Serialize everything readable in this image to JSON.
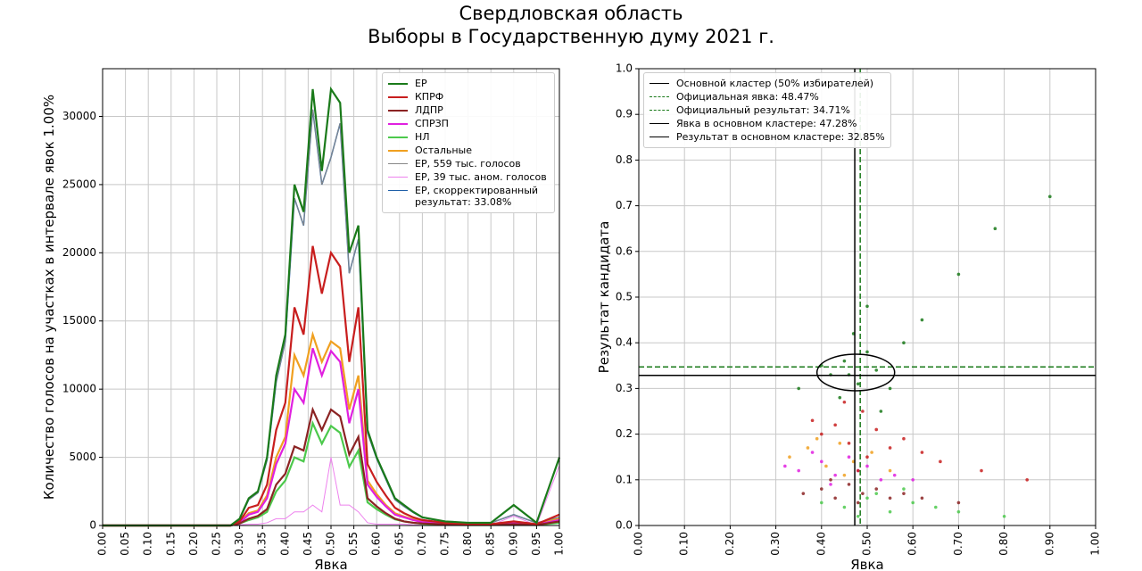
{
  "suptitle": [
    "Свердловская область",
    "Выборы в Государственную думу 2021 г."
  ],
  "chart_data": [
    {
      "type": "line",
      "xlabel": "Явка",
      "ylabel": "Количество голосов на участках в интервале явок 1.00%",
      "x": [
        0,
        0.28,
        0.3,
        0.32,
        0.34,
        0.36,
        0.38,
        0.4,
        0.42,
        0.44,
        0.46,
        0.48,
        0.5,
        0.52,
        0.54,
        0.56,
        0.58,
        0.6,
        0.62,
        0.64,
        0.66,
        0.68,
        0.7,
        0.75,
        0.8,
        0.85,
        0.9,
        0.95,
        1.0
      ],
      "xlim": [
        0,
        1
      ],
      "ylim": [
        0,
        33500
      ],
      "xticks": [
        {
          "value": 0,
          "label": "0.00"
        },
        {
          "value": 0.05,
          "label": "0.05"
        },
        {
          "value": 0.1,
          "label": "0.10"
        },
        {
          "value": 0.15,
          "label": "0.15"
        },
        {
          "value": 0.2,
          "label": "0.20"
        },
        {
          "value": 0.25,
          "label": "0.25"
        },
        {
          "value": 0.3,
          "label": "0.30"
        },
        {
          "value": 0.35,
          "label": "0.35"
        },
        {
          "value": 0.4,
          "label": "0.40"
        },
        {
          "value": 0.45,
          "label": "0.45"
        },
        {
          "value": 0.5,
          "label": "0.50"
        },
        {
          "value": 0.55,
          "label": "0.55"
        },
        {
          "value": 0.6,
          "label": "0.60"
        },
        {
          "value": 0.65,
          "label": "0.65"
        },
        {
          "value": 0.7,
          "label": "0.70"
        },
        {
          "value": 0.75,
          "label": "0.75"
        },
        {
          "value": 0.8,
          "label": "0.80"
        },
        {
          "value": 0.85,
          "label": "0.85"
        },
        {
          "value": 0.9,
          "label": "0.90"
        },
        {
          "value": 0.95,
          "label": "0.95"
        },
        {
          "value": 1,
          "label": "1.00"
        }
      ],
      "yticks": [
        0,
        5000,
        10000,
        15000,
        20000,
        25000,
        30000
      ],
      "grid": true,
      "legend": "upper right",
      "series": [
        {
          "name": "ЕР",
          "color": "#1a7a1a",
          "width": 2.2,
          "values": [
            0,
            0,
            500,
            2000,
            2500,
            5000,
            11000,
            14000,
            25000,
            23000,
            32000,
            26000,
            32000,
            31000,
            20000,
            22000,
            7000,
            5000,
            3500,
            2000,
            1500,
            1000,
            600,
            300,
            200,
            200,
            1500,
            200,
            5000
          ]
        },
        {
          "name": "КПРФ",
          "color": "#c81e1e",
          "width": 2.2,
          "values": [
            0,
            0,
            300,
            1300,
            1500,
            3000,
            7000,
            9000,
            16000,
            14000,
            20500,
            17000,
            20000,
            19000,
            12000,
            16000,
            4500,
            3200,
            2200,
            1300,
            900,
            600,
            400,
            200,
            100,
            100,
            300,
            100,
            800
          ]
        },
        {
          "name": "ЛДПР",
          "color": "#8b2323",
          "width": 2.2,
          "values": [
            0,
            0,
            150,
            500,
            700,
            1200,
            3000,
            3800,
            5800,
            5500,
            8500,
            7000,
            8500,
            8000,
            5200,
            6500,
            2000,
            1400,
            900,
            500,
            300,
            200,
            150,
            80,
            40,
            40,
            100,
            40,
            300
          ]
        },
        {
          "name": "СПРЗП",
          "color": "#e020e0",
          "width": 2.2,
          "values": [
            0,
            0,
            200,
            800,
            1000,
            2000,
            4500,
            6000,
            10000,
            9000,
            13000,
            11000,
            12800,
            12000,
            7500,
            10000,
            3000,
            2100,
            1400,
            800,
            600,
            400,
            250,
            120,
            60,
            60,
            200,
            60,
            400
          ]
        },
        {
          "name": "НЛ",
          "color": "#4cc94c",
          "width": 2.2,
          "values": [
            0,
            0,
            150,
            400,
            600,
            1000,
            2500,
            3300,
            5000,
            4700,
            7500,
            6000,
            7300,
            6800,
            4300,
            5500,
            1700,
            1200,
            800,
            450,
            300,
            200,
            120,
            60,
            30,
            30,
            80,
            30,
            200
          ]
        },
        {
          "name": "Остальные",
          "color": "#f0a020",
          "width": 2.2,
          "values": [
            0,
            0,
            250,
            900,
            1100,
            2200,
            5000,
            6500,
            12500,
            11000,
            14000,
            12000,
            13500,
            13000,
            8500,
            11000,
            3300,
            2300,
            1500,
            900,
            650,
            450,
            280,
            130,
            70,
            70,
            250,
            70,
            500
          ]
        },
        {
          "name": "ЕР, 559 тыс. голосов",
          "color": "#888888",
          "width": 1,
          "values": [
            0,
            0,
            450,
            1900,
            2400,
            4800,
            10500,
            13500,
            24000,
            22000,
            30500,
            25000,
            27000,
            29500,
            18500,
            21000,
            6800,
            4900,
            3400,
            1900,
            1400,
            950,
            580,
            290,
            190,
            190,
            800,
            190,
            600
          ]
        },
        {
          "name": "ЕР, 39 тыс. аном. голосов",
          "color": "#ee82ee",
          "width": 1,
          "values": [
            0,
            0,
            50,
            100,
            100,
            200,
            500,
            500,
            1000,
            1000,
            1500,
            1000,
            5000,
            1500,
            1500,
            1000,
            200,
            100,
            100,
            100,
            100,
            50,
            20,
            10,
            10,
            10,
            700,
            10,
            4400
          ]
        },
        {
          "name": "ЕР, скорректированный\nрезультат: 33.08%",
          "color": "#1f5fa8",
          "width": 1.5,
          "values": [
            0,
            0,
            450,
            1900,
            2400,
            4800,
            10500,
            13500,
            24000,
            22000,
            30500,
            25000,
            27000,
            29500,
            18500,
            21000,
            6800,
            4900,
            3400,
            1900,
            1400,
            950,
            580,
            290,
            190,
            190,
            800,
            190,
            600
          ]
        }
      ]
    },
    {
      "type": "scatter",
      "xlabel": "Явка",
      "ylabel": "Результат кандидата",
      "xlim": [
        0,
        1
      ],
      "ylim": [
        0,
        1
      ],
      "xticks": [
        {
          "value": 0,
          "label": "0.00"
        },
        {
          "value": 0.1,
          "label": "0.10"
        },
        {
          "value": 0.2,
          "label": "0.20"
        },
        {
          "value": 0.3,
          "label": "0.30"
        },
        {
          "value": 0.4,
          "label": "0.40"
        },
        {
          "value": 0.5,
          "label": "0.50"
        },
        {
          "value": 0.6,
          "label": "0.60"
        },
        {
          "value": 0.7,
          "label": "0.70"
        },
        {
          "value": 0.8,
          "label": "0.80"
        },
        {
          "value": 0.9,
          "label": "0.90"
        },
        {
          "value": 1,
          "label": "1.00"
        }
      ],
      "yticks": [
        {
          "value": 0,
          "label": "0.0"
        },
        0.1,
        0.2,
        0.3,
        0.4,
        0.5,
        0.6,
        0.7,
        0.8,
        0.9,
        {
          "value": 1,
          "label": "1.0"
        }
      ],
      "grid": true,
      "legend": "upper left",
      "cluster": {
        "name": "Основной кластер (50% избирателей)",
        "color": "#000000",
        "x": 0.475,
        "y": 0.335,
        "width": 0.17,
        "height": 0.08
      },
      "lines": [
        {
          "name": "Официальная явка: 48.47%",
          "orientation": "vertical",
          "value": 0.4847,
          "color": "#1a7a1a",
          "dash": true
        },
        {
          "name": "Официальный результат: 34.71%",
          "orientation": "horizontal",
          "value": 0.3471,
          "color": "#1a7a1a",
          "dash": true
        },
        {
          "name": "Явка в основном кластере: 47.28%",
          "orientation": "vertical",
          "value": 0.4728,
          "color": "#000000",
          "dash": false
        },
        {
          "name": "Результат в основном кластере: 32.85%",
          "orientation": "horizontal",
          "value": 0.3285,
          "color": "#000000",
          "dash": false
        }
      ],
      "series": [
        {
          "color": "#4cc94c",
          "x": [
            0.4,
            0.45,
            0.5,
            0.55,
            0.6,
            0.65,
            0.48,
            0.52,
            0.7,
            0.8,
            0.58
          ],
          "values": [
            0.05,
            0.04,
            0.06,
            0.03,
            0.05,
            0.04,
            0.02,
            0.07,
            0.03,
            0.02,
            0.08
          ]
        },
        {
          "color": "#8b2323",
          "x": [
            0.36,
            0.4,
            0.43,
            0.46,
            0.49,
            0.52,
            0.55,
            0.58,
            0.42,
            0.48,
            0.62,
            0.7
          ],
          "values": [
            0.07,
            0.08,
            0.06,
            0.09,
            0.07,
            0.08,
            0.06,
            0.07,
            0.1,
            0.05,
            0.06,
            0.05
          ]
        },
        {
          "color": "#f0a020",
          "x": [
            0.33,
            0.37,
            0.41,
            0.44,
            0.47,
            0.51,
            0.39,
            0.55,
            0.45
          ],
          "values": [
            0.15,
            0.17,
            0.13,
            0.18,
            0.14,
            0.16,
            0.19,
            0.12,
            0.11
          ]
        },
        {
          "color": "#e020e0",
          "x": [
            0.35,
            0.4,
            0.43,
            0.46,
            0.5,
            0.53,
            0.38,
            0.48,
            0.56,
            0.42,
            0.6,
            0.32
          ],
          "values": [
            0.12,
            0.14,
            0.11,
            0.15,
            0.13,
            0.1,
            0.16,
            0.12,
            0.11,
            0.09,
            0.1,
            0.13
          ]
        },
        {
          "color": "#c81e1e",
          "x": [
            0.4,
            0.43,
            0.46,
            0.49,
            0.52,
            0.55,
            0.58,
            0.45,
            0.5,
            0.62,
            0.38,
            0.48,
            0.66,
            0.75,
            0.85
          ],
          "values": [
            0.2,
            0.22,
            0.18,
            0.25,
            0.21,
            0.17,
            0.19,
            0.27,
            0.15,
            0.16,
            0.23,
            0.12,
            0.14,
            0.12,
            0.1
          ]
        },
        {
          "color": "#1a7a1a",
          "x": [
            0.42,
            0.45,
            0.48,
            0.5,
            0.52,
            0.55,
            0.44,
            0.47,
            0.4,
            0.58,
            0.62,
            0.35,
            0.7,
            0.78,
            0.9,
            0.5,
            0.53,
            0.46
          ],
          "values": [
            0.33,
            0.36,
            0.31,
            0.38,
            0.34,
            0.3,
            0.28,
            0.42,
            0.35,
            0.4,
            0.45,
            0.3,
            0.55,
            0.65,
            0.72,
            0.48,
            0.25,
            0.33
          ]
        }
      ]
    }
  ]
}
